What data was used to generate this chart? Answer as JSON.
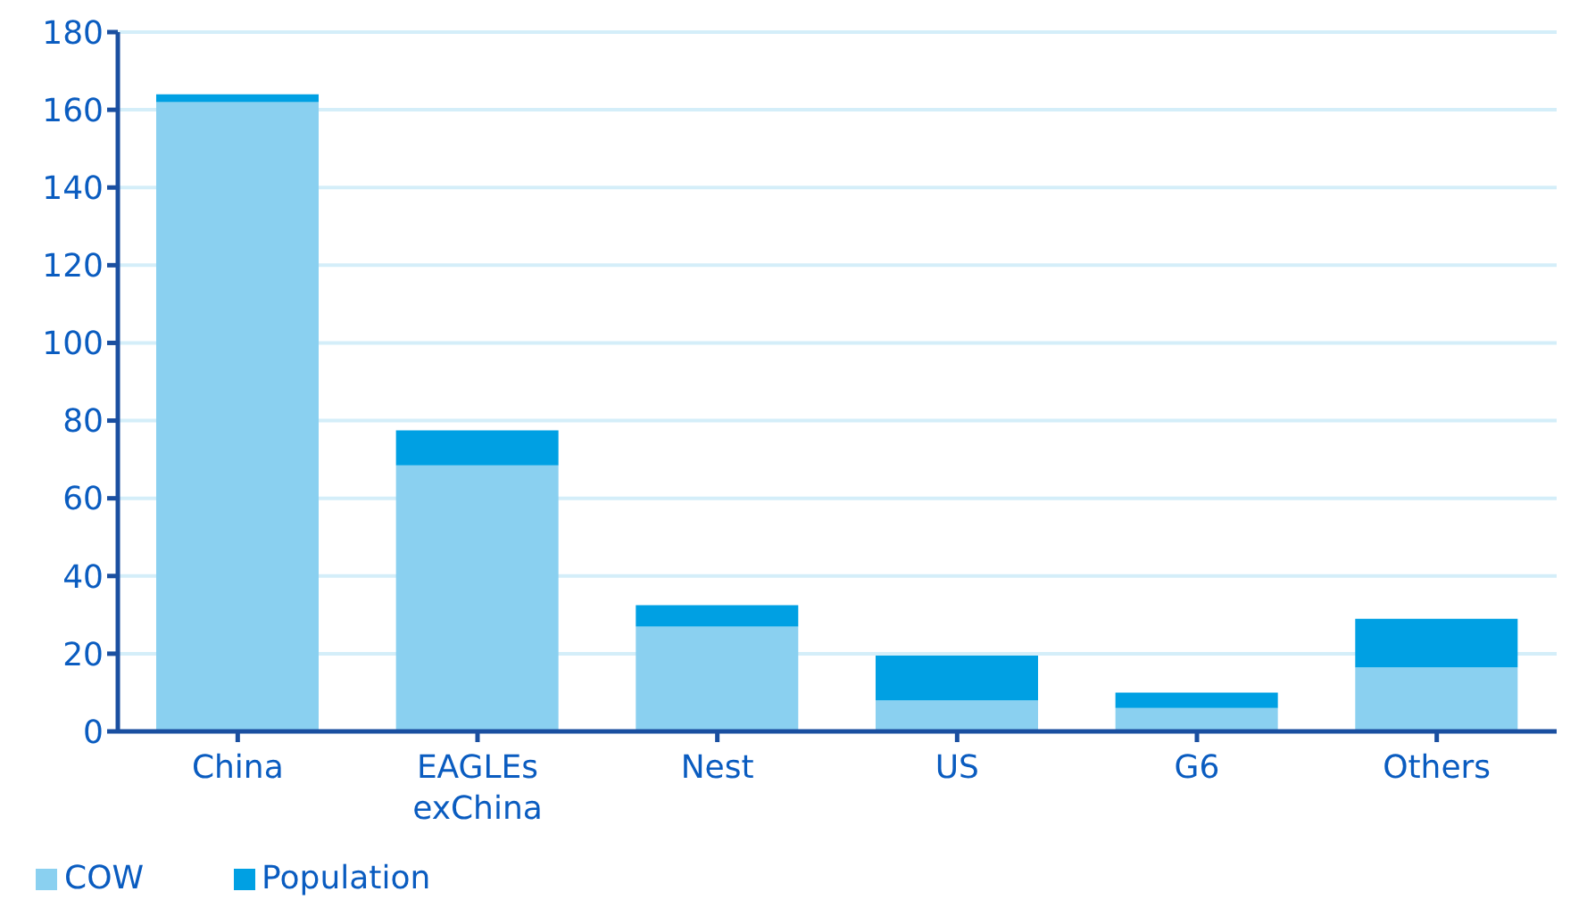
{
  "chart_data": {
    "type": "bar",
    "stacked": true,
    "categories": [
      "China",
      "EAGLEs exChina",
      "Nest",
      "US",
      "G6",
      "Others"
    ],
    "series": [
      {
        "name": "COW",
        "color": "#8ad0f0",
        "values": [
          162,
          68.5,
          27,
          8,
          6,
          16.5
        ]
      },
      {
        "name": "Population",
        "color": "#00a0e3",
        "values": [
          2,
          9,
          5.5,
          11.5,
          4,
          12.5
        ]
      }
    ],
    "ylim": [
      0,
      180
    ],
    "yticks": [
      0,
      20,
      40,
      60,
      80,
      100,
      120,
      140,
      160,
      180
    ],
    "grid": "y",
    "legend": "bottom left"
  }
}
